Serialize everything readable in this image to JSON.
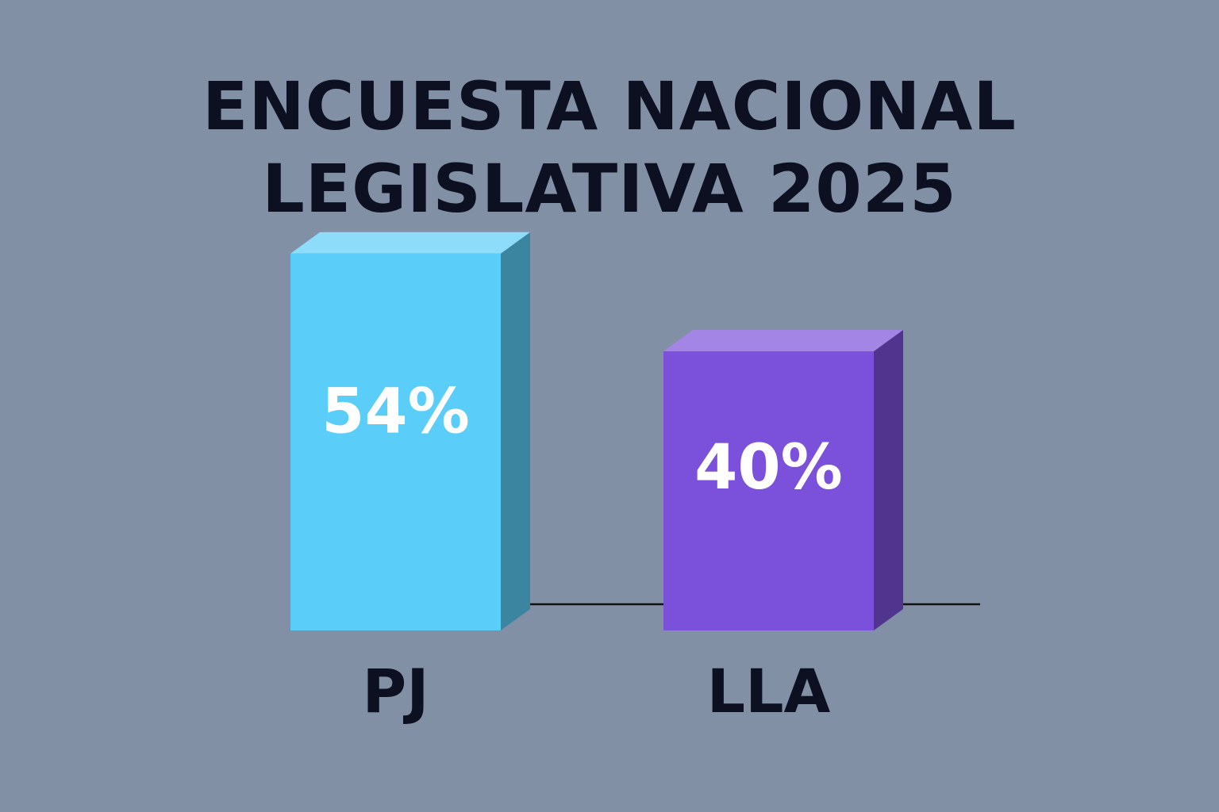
{
  "chart_data": {
    "type": "bar3d",
    "title": "ENCUESTA NACIONAL LEGISLATIVA 2025",
    "categories": [
      "PJ",
      "LLA"
    ],
    "values": [
      54,
      40
    ],
    "value_labels": [
      "54%",
      "40%"
    ],
    "colors": [
      "#5acdf8",
      "#7b50da"
    ]
  }
}
